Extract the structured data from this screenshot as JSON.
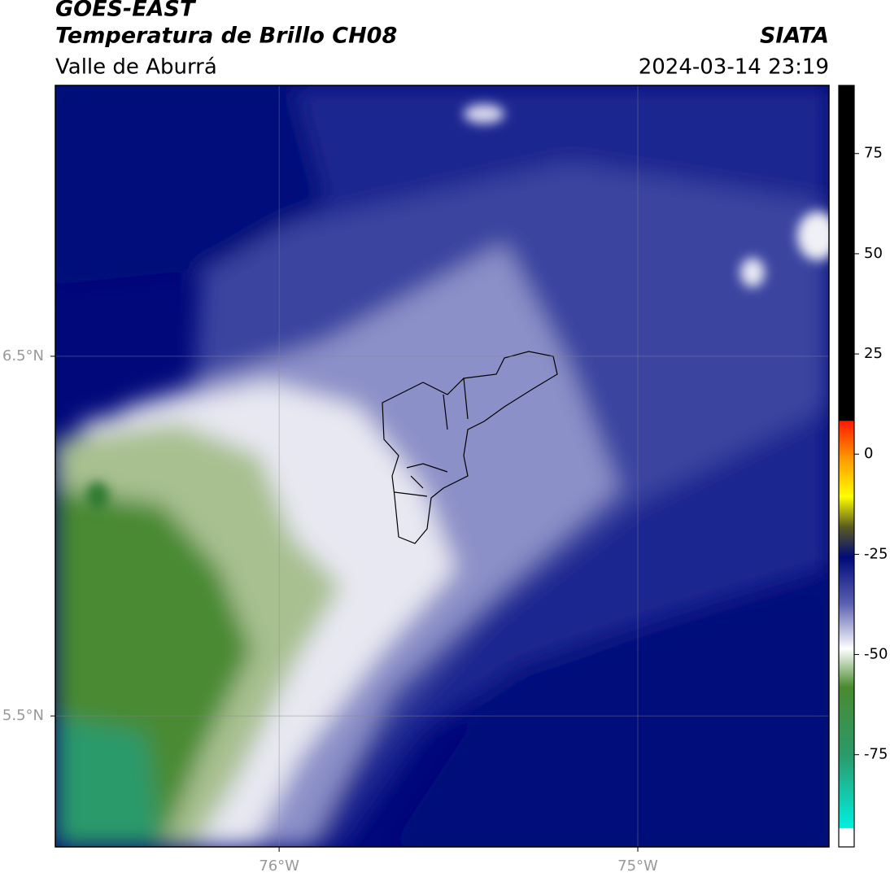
{
  "map": {
    "title": "GOES-EAST",
    "subtitle": "Temperatura de Brillo CH08",
    "region": "Valle de Aburrá",
    "source": "SIATA",
    "timestamp": "2024-03-14 23:19",
    "xlim": [
      -76.624,
      -74.467
    ],
    "ylim": [
      5.136,
      7.253
    ],
    "xticks": [
      {
        "value": -76,
        "label": "76°W"
      },
      {
        "value": -75,
        "label": "75°W"
      }
    ],
    "yticks": [
      {
        "value": 6.5,
        "label": "6.5°N"
      },
      {
        "value": 5.5,
        "label": "5.5°N"
      }
    ],
    "grid": true
  },
  "colorbar": {
    "lim": [
      -98,
      92
    ],
    "ticks": [
      75,
      50,
      25,
      0,
      -25,
      -50,
      -75
    ]
  }
}
